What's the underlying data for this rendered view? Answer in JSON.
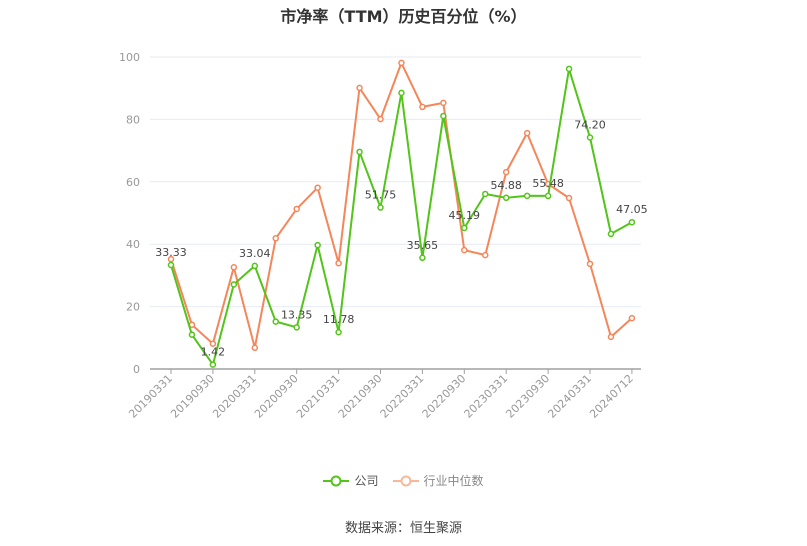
{
  "title": "市净率（TTM）历史百分位（%）",
  "source": "数据来源：恒生聚源",
  "legend": [
    {
      "label": "公司",
      "color": "#52c41a"
    },
    {
      "label": "行业中位数",
      "color": "#f5865a"
    }
  ],
  "chart_data": {
    "type": "line",
    "title": "市净率（TTM）历史百分位（%）",
    "xlabel": "",
    "ylabel": "",
    "ylim": [
      0,
      100
    ],
    "yticks": [
      0,
      20,
      40,
      60,
      80,
      100
    ],
    "grid": true,
    "legend_position": "bottom",
    "x": [
      "20190331",
      "20190630",
      "20190930",
      "20191231",
      "20200331",
      "20200630",
      "20200930",
      "20201231",
      "20210331",
      "20210630",
      "20210930",
      "20211231",
      "20220331",
      "20220630",
      "20220930",
      "20221231",
      "20230331",
      "20230630",
      "20230930",
      "20231231",
      "20240331",
      "20240630",
      "20240712"
    ],
    "x_tick_labels": [
      "20190331",
      "20190930",
      "20200331",
      "20200930",
      "20210331",
      "20210930",
      "20220331",
      "20220930",
      "20230331",
      "20230930",
      "20240331",
      "20240712"
    ],
    "series": [
      {
        "name": "公司",
        "color": "#52c41a",
        "values": [
          33.33,
          11.0,
          1.42,
          27.1,
          33.04,
          15.2,
          13.35,
          39.7,
          11.78,
          69.6,
          51.75,
          88.5,
          35.65,
          81.1,
          45.19,
          56.1,
          54.88,
          55.5,
          55.48,
          96.2,
          74.2,
          43.3,
          47.05
        ],
        "labeled_points": {
          "0": "33.33",
          "2": "1.42",
          "4": "33.04",
          "6": "13.35",
          "8": "11.78",
          "10": "51.75",
          "12": "35.65",
          "14": "45.19",
          "16": "54.88",
          "18": "55.48",
          "20": "74.20",
          "22": "47.05"
        }
      },
      {
        "name": "行业中位数",
        "color": "#f5865a",
        "values": [
          35.2,
          14.2,
          8.1,
          32.6,
          6.8,
          41.9,
          51.3,
          58.1,
          33.9,
          90.1,
          80.1,
          98.1,
          84.0,
          85.3,
          38.1,
          36.5,
          63.1,
          75.6,
          59.3,
          54.8,
          33.7,
          10.3,
          16.3
        ]
      }
    ]
  }
}
